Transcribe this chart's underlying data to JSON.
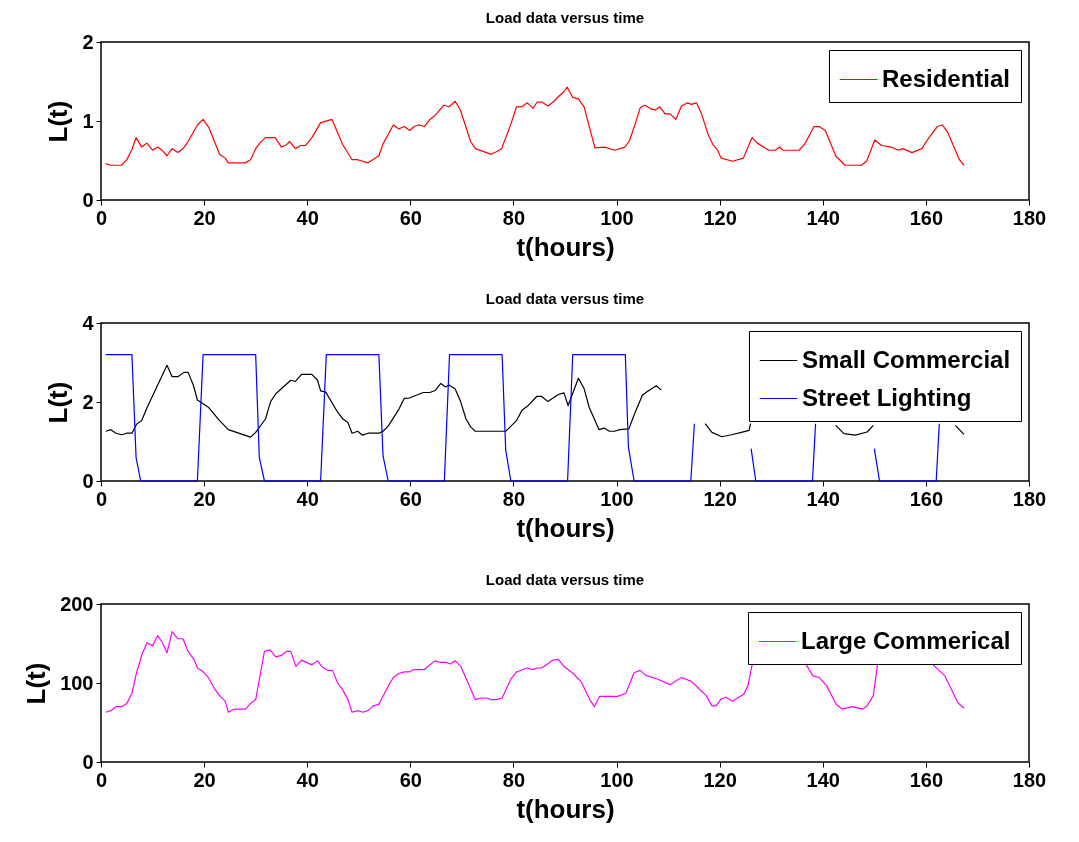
{
  "chart_data": [
    {
      "type": "line",
      "title": "Load data versus time",
      "xlabel": "t(hours)",
      "ylabel": "L(t)",
      "xlim": [
        0,
        180
      ],
      "xticks": [
        0,
        20,
        40,
        60,
        80,
        100,
        120,
        140,
        160,
        180
      ],
      "ylim": [
        0,
        2
      ],
      "yticks": [
        0,
        1,
        2
      ],
      "grid": false,
      "legend": "top right",
      "series": [
        {
          "name": "Residential",
          "color": "#ff0000",
          "x": [
            0.9,
            1.9,
            4.0,
            5.0,
            6.0,
            6.8,
            7.9,
            8.9,
            10.0,
            11.0,
            12.0,
            12.8,
            13.8,
            14.9,
            15.9,
            16.9,
            18.7,
            19.8,
            20.9,
            23.0,
            24.1,
            24.7,
            28.0,
            29.0,
            30.0,
            30.9,
            31.9,
            33.8,
            35.0,
            36.0,
            36.6,
            37.7,
            38.7,
            39.7,
            40.9,
            42.6,
            44.8,
            46.9,
            48.7,
            49.8,
            51.8,
            53.9,
            54.7,
            55.7,
            56.7,
            57.8,
            58.8,
            59.9,
            60.7,
            61.6,
            62.7,
            63.8,
            64.8,
            66.5,
            67.5,
            68.7,
            69.7,
            71.7,
            72.6,
            75.6,
            76.7,
            77.7,
            79.5,
            80.6,
            81.6,
            82.7,
            83.8,
            84.6,
            85.5,
            86.7,
            87.7,
            88.9,
            89.8,
            90.4,
            91.5,
            92.6,
            93.7,
            95.8,
            97.7,
            99.6,
            101.6,
            102.5,
            103.4,
            104.6,
            105.5,
            106.8,
            107.5,
            108.4,
            109.4,
            110.4,
            111.5,
            112.6,
            113.8,
            114.5,
            115.5,
            116.5,
            117.7,
            118.7,
            119.6,
            120.3,
            122.5,
            124.6,
            126.3,
            127.3,
            129.5,
            130.8,
            131.6,
            132.3,
            135.4,
            136.5,
            138.3,
            139.3,
            140.5,
            142.5,
            144.3,
            147.5,
            148.5,
            150.1,
            151.4,
            153.3,
            154.6,
            155.5,
            157.3,
            159.2,
            160.6,
            162.2,
            163.2,
            164.2,
            166.5,
            167.4
          ],
          "values": [
            0.46,
            0.44,
            0.44,
            0.51,
            0.64,
            0.79,
            0.67,
            0.72,
            0.63,
            0.67,
            0.62,
            0.56,
            0.65,
            0.6,
            0.65,
            0.74,
            0.95,
            1.02,
            0.92,
            0.58,
            0.53,
            0.47,
            0.47,
            0.51,
            0.65,
            0.73,
            0.79,
            0.79,
            0.67,
            0.7,
            0.74,
            0.65,
            0.69,
            0.69,
            0.79,
            0.98,
            1.02,
            0.7,
            0.51,
            0.51,
            0.47,
            0.56,
            0.71,
            0.83,
            0.95,
            0.9,
            0.93,
            0.88,
            0.93,
            0.95,
            0.93,
            1.02,
            1.07,
            1.2,
            1.18,
            1.25,
            1.14,
            0.74,
            0.65,
            0.58,
            0.61,
            0.65,
            0.96,
            1.18,
            1.18,
            1.23,
            1.16,
            1.24,
            1.24,
            1.19,
            1.24,
            1.32,
            1.37,
            1.43,
            1.3,
            1.28,
            1.18,
            0.66,
            0.67,
            0.63,
            0.67,
            0.75,
            0.92,
            1.17,
            1.2,
            1.15,
            1.14,
            1.18,
            1.09,
            1.09,
            1.02,
            1.19,
            1.23,
            1.21,
            1.23,
            1.09,
            0.84,
            0.7,
            0.63,
            0.53,
            0.49,
            0.53,
            0.79,
            0.72,
            0.63,
            0.63,
            0.67,
            0.63,
            0.63,
            0.71,
            0.93,
            0.93,
            0.88,
            0.56,
            0.44,
            0.44,
            0.49,
            0.76,
            0.69,
            0.67,
            0.63,
            0.65,
            0.6,
            0.65,
            0.79,
            0.93,
            0.95,
            0.86,
            0.51,
            0.44
          ]
        }
      ]
    },
    {
      "type": "line",
      "title": "Load data versus time",
      "xlabel": "t(hours)",
      "ylabel": "L(t)",
      "xlim": [
        0,
        180
      ],
      "xticks": [
        0,
        20,
        40,
        60,
        80,
        100,
        120,
        140,
        160,
        180
      ],
      "ylim": [
        0,
        4
      ],
      "yticks": [
        0,
        2,
        4
      ],
      "grid": false,
      "legend": "top right",
      "series": [
        {
          "name": "Small Commercial",
          "color": "#000000",
          "x": [
            0.9,
            1.9,
            2.9,
            4.0,
            5.0,
            6.0,
            6.9,
            7.9,
            8.9,
            12.8,
            13.8,
            14.9,
            16.1,
            16.9,
            17.9,
            18.7,
            20.9,
            23.0,
            24.7,
            29.0,
            30.0,
            31.9,
            32.9,
            33.9,
            36.8,
            37.7,
            38.9,
            40.9,
            42.0,
            42.6,
            43.6,
            45.8,
            46.9,
            47.9,
            48.7,
            49.8,
            50.7,
            51.8,
            53.9,
            54.7,
            55.7,
            57.8,
            58.8,
            59.8,
            62.5,
            63.8,
            64.8,
            65.9,
            66.8,
            67.5,
            68.7,
            69.7,
            70.8,
            71.7,
            72.6,
            78.5,
            80.6,
            81.7,
            82.7,
            84.5,
            85.5,
            86.7,
            88.7,
            89.8,
            90.6,
            92.6,
            93.7,
            94.7,
            95.7,
            96.6,
            97.6,
            98.6,
            99.6,
            100.6,
            102.4,
            103.4,
            105.0,
            105.9,
            107.7,
            108.7,
            112.5,
            117.2,
            118.5,
            120.4,
            122.3,
            124.2,
            125.7,
            126.0,
            134.0,
            142.5,
            144.1,
            146.3,
            148.6,
            149.8,
            157.5,
            165.7,
            167.4
          ],
          "values": [
            1.26,
            1.3,
            1.21,
            1.17,
            1.21,
            1.21,
            1.44,
            1.53,
            1.85,
            2.93,
            2.64,
            2.64,
            2.75,
            2.75,
            2.43,
            2.05,
            1.86,
            1.53,
            1.3,
            1.11,
            1.23,
            1.57,
            2.01,
            2.21,
            2.55,
            2.52,
            2.7,
            2.7,
            2.55,
            2.28,
            2.25,
            1.76,
            1.57,
            1.48,
            1.21,
            1.26,
            1.16,
            1.21,
            1.21,
            1.26,
            1.39,
            1.82,
            2.09,
            2.1,
            2.24,
            2.24,
            2.29,
            2.47,
            2.38,
            2.43,
            2.33,
            2.03,
            1.57,
            1.37,
            1.26,
            1.26,
            1.53,
            1.8,
            1.89,
            2.14,
            2.14,
            2.01,
            2.19,
            2.23,
            1.91,
            2.6,
            2.34,
            1.86,
            1.57,
            1.3,
            1.34,
            1.26,
            1.26,
            1.3,
            1.32,
            1.67,
            2.17,
            2.26,
            2.41,
            2.3,
            null,
            1.45,
            1.23,
            1.12,
            1.17,
            1.23,
            1.28,
            1.45,
            null,
            1.41,
            1.2,
            1.16,
            1.24,
            1.41,
            null,
            1.41,
            1.18
          ]
        },
        {
          "name": "Street Lighting",
          "color": "#0000ff",
          "x": [
            0.9,
            6.0,
            6.8,
            7.7,
            18.7,
            19.8,
            30.0,
            30.7,
            31.7,
            42.6,
            43.7,
            53.9,
            54.7,
            55.7,
            66.6,
            67.6,
            77.8,
            78.5,
            79.5,
            90.5,
            91.5,
            101.7,
            102.3,
            103.4,
            114.4,
            115.1,
            120.0,
            126.1,
            127.0,
            138.0,
            138.6,
            144.0,
            150.0,
            151.0,
            162.0,
            162.6
          ],
          "values": [
            3.2,
            3.2,
            0.6,
            0,
            0,
            3.2,
            3.2,
            0.6,
            0,
            0,
            3.2,
            3.2,
            0.64,
            0,
            0,
            3.2,
            3.2,
            0.78,
            0,
            0,
            3.2,
            3.2,
            0.86,
            0,
            0,
            1.45,
            null,
            0.82,
            0,
            0,
            1.45,
            null,
            0.82,
            0,
            0,
            1.45
          ]
        }
      ]
    },
    {
      "type": "line",
      "title": "Load data versus time",
      "xlabel": "t(hours)",
      "ylabel": "L(t)",
      "xlim": [
        0,
        180
      ],
      "xticks": [
        0,
        20,
        40,
        60,
        80,
        100,
        120,
        140,
        160,
        180
      ],
      "ylim": [
        0,
        200
      ],
      "yticks": [
        0,
        100,
        200
      ],
      "grid": false,
      "legend": "top right",
      "series": [
        {
          "name": "Large Commerical",
          "color": "#ff00ff",
          "x": [
            0.9,
            1.9,
            2.9,
            4.0,
            5.0,
            6.0,
            6.9,
            7.9,
            8.9,
            10.0,
            11.0,
            12.0,
            12.8,
            13.8,
            14.9,
            15.9,
            16.9,
            18.1,
            18.7,
            19.7,
            20.8,
            22.0,
            23.0,
            24.1,
            24.7,
            25.9,
            28.0,
            29.0,
            30.0,
            31.7,
            32.8,
            33.9,
            35.0,
            36.0,
            36.8,
            37.8,
            38.9,
            40.9,
            42.0,
            42.8,
            43.9,
            44.9,
            45.9,
            46.9,
            47.9,
            48.7,
            49.8,
            50.8,
            51.8,
            52.8,
            53.9,
            55.7,
            56.7,
            57.8,
            58.8,
            59.8,
            60.7,
            62.7,
            63.8,
            64.8,
            65.9,
            67.0,
            67.7,
            68.7,
            69.8,
            72.6,
            73.8,
            74.8,
            75.7,
            76.7,
            77.8,
            79.5,
            80.6,
            82.6,
            83.8,
            84.6,
            85.5,
            87.7,
            88.7,
            89.8,
            91.6,
            93.2,
            94.8,
            95.7,
            96.7,
            97.7,
            100.2,
            101.8,
            103.4,
            104.6,
            105.6,
            107.9,
            110.4,
            112.6,
            114.5,
            115.8,
            117.4,
            118.5,
            119.3,
            120.3,
            121.2,
            122.5,
            124.7,
            125.5,
            126.3,
            131.5,
            136.8,
            138.1,
            139.3,
            140.7,
            142.6,
            143.7,
            145.8,
            147.7,
            148.6,
            149.8,
            150.6,
            156.0,
            161.4,
            163.7,
            166.2,
            167.4
          ],
          "values": [
            63,
            65,
            70,
            70,
            74,
            87,
            113,
            135,
            151,
            147,
            160,
            150,
            138,
            165,
            156,
            156,
            140,
            129,
            119,
            115,
            107,
            93,
            84,
            77,
            63,
            67,
            67,
            74,
            79,
            140,
            142,
            133,
            135,
            140,
            140,
            121,
            129,
            123,
            128,
            121,
            116,
            116,
            100,
            91,
            79,
            63,
            65,
            63,
            65,
            71,
            73,
            96,
            107,
            112,
            114,
            114,
            117,
            117,
            123,
            128,
            126,
            126,
            124,
            128,
            121,
            79,
            81,
            81,
            79,
            79,
            81,
            105,
            114,
            119,
            117,
            119,
            119,
            129,
            130,
            121,
            112,
            101,
            79,
            70,
            83,
            83,
            83,
            87,
            113,
            116,
            110,
            105,
            98,
            107,
            102,
            94,
            84,
            71,
            71,
            80,
            82,
            77,
            86,
            97,
            123,
            null,
            123,
            109,
            107,
            97,
            73,
            67,
            70,
            67,
            71,
            84,
            123,
            null,
            123,
            109,
            75,
            68
          ]
        }
      ]
    }
  ]
}
